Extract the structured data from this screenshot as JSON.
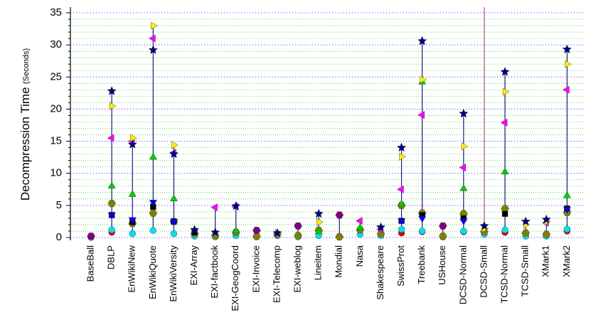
{
  "chart_data": {
    "type": "dot-range",
    "ylabel": "Decompression Time",
    "ylabel_unit": "(Seconds)",
    "categories": [
      "BaseBall",
      "DBLP",
      "EnWikiNew",
      "EnWikiQuote",
      "EnWikiVersity",
      "EXI-Array",
      "EXI-factbook",
      "EXI-GeogCoord",
      "EXI-Invoice",
      "EXI-Telecomp",
      "EXI-weblog",
      "Lineitem",
      "Mondial",
      "Nasa",
      "Shakespeare",
      "SwissProt",
      "Treebank",
      "USHouse",
      "DCSD-Normal",
      "DCSD-Small",
      "TCSD-Normal",
      "TCSD-Small",
      "XMark1",
      "XMark2"
    ],
    "ylim": [
      0,
      35
    ],
    "yticks": [
      0,
      5,
      10,
      15,
      20,
      25,
      30,
      35
    ],
    "yminorticks": [
      1,
      2,
      3,
      4,
      6,
      7,
      8,
      9,
      11,
      12,
      13,
      14,
      16,
      17,
      18,
      19,
      21,
      22,
      23,
      24,
      26,
      27,
      28,
      29,
      31,
      32,
      33,
      34
    ],
    "grid": true,
    "grid_color": "#3030ff",
    "minor_grid_color": "#33dd33",
    "range_line_color": "#1a1a80",
    "series": [
      {
        "color": "#e00000",
        "marker": "circle",
        "values": [
          null,
          0.8,
          null,
          null,
          null,
          null,
          null,
          null,
          null,
          null,
          null,
          null,
          null,
          null,
          null,
          0.7,
          0.9,
          null,
          0.9,
          null,
          0.8,
          null,
          null,
          1.0
        ]
      },
      {
        "color": "#00e0f0",
        "marker": "circle",
        "values": [
          0,
          1.2,
          0.6,
          1.1,
          0.6,
          0.2,
          0.1,
          0.3,
          0.1,
          0.3,
          0.1,
          0.3,
          null,
          0.5,
          0.3,
          1.3,
          1.0,
          0.1,
          1.0,
          0.5,
          1.2,
          0.2,
          0.2,
          1.3
        ]
      },
      {
        "color": "#808000",
        "marker": "hexagon",
        "values": [
          null,
          5.3,
          2.2,
          3.8,
          2.5,
          0.6,
          0.3,
          0.8,
          0.2,
          0.5,
          0.3,
          1.1,
          0.1,
          1.2,
          0.6,
          5.0,
          3.8,
          0.2,
          3.7,
          0.9,
          4.5,
          0.7,
          0.5,
          3.9
        ]
      },
      {
        "color": "#000000",
        "marker": "square",
        "values": [
          null,
          3.5,
          2.4,
          4.8,
          2.5,
          0.8,
          null,
          null,
          null,
          null,
          null,
          null,
          null,
          null,
          null,
          2.6,
          3.5,
          null,
          3.0,
          null,
          3.7,
          null,
          null,
          4.5
        ]
      },
      {
        "color": "#0000ff",
        "marker": "triangle-down",
        "values": [
          null,
          3.5,
          2.8,
          5.5,
          2.5,
          null,
          null,
          null,
          null,
          null,
          null,
          null,
          null,
          null,
          null,
          2.6,
          3.0,
          null,
          2.6,
          null,
          null,
          null,
          null,
          4.4
        ]
      },
      {
        "color": "#00cc00",
        "marker": "triangle-up",
        "values": [
          null,
          8.0,
          6.7,
          12.5,
          6.0,
          null,
          null,
          1.0,
          null,
          null,
          null,
          0.9,
          null,
          1.5,
          null,
          5.2,
          24.2,
          null,
          7.6,
          null,
          10.2,
          null,
          null,
          6.5
        ]
      },
      {
        "color": "#ff00ff",
        "marker": "triangle-left",
        "values": [
          null,
          15.5,
          15.0,
          31.0,
          13.2,
          null,
          4.7,
          4.8,
          null,
          null,
          null,
          null,
          null,
          2.6,
          1.3,
          7.5,
          19.1,
          null,
          10.9,
          null,
          17.9,
          null,
          2.3,
          23.0
        ]
      },
      {
        "color": "#ffee00",
        "marker": "triangle-right",
        "values": [
          null,
          20.5,
          15.5,
          33.0,
          14.4,
          null,
          null,
          null,
          null,
          0.7,
          null,
          2.4,
          null,
          null,
          null,
          12.6,
          24.6,
          null,
          14.2,
          1.4,
          22.7,
          2.0,
          2.5,
          27.0
        ]
      },
      {
        "color": "#000080",
        "marker": "star",
        "values": [
          null,
          22.8,
          14.5,
          29.2,
          13.0,
          1.2,
          0.8,
          4.9,
          null,
          0.7,
          null,
          3.7,
          null,
          null,
          1.6,
          14.0,
          30.6,
          null,
          19.3,
          1.8,
          25.8,
          2.5,
          2.8,
          29.3
        ]
      },
      {
        "color": "#800080",
        "marker": "hexagon",
        "values": [
          0.2,
          null,
          null,
          null,
          null,
          null,
          null,
          null,
          1.1,
          null,
          1.8,
          null,
          3.5,
          null,
          null,
          null,
          null,
          1.8,
          null,
          null,
          null,
          null,
          null,
          null
        ]
      }
    ]
  }
}
